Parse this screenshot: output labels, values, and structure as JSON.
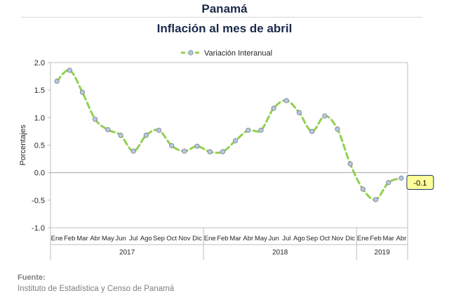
{
  "header": {
    "country": "Panamá",
    "title": "Inflación al mes de abril"
  },
  "source": {
    "label": "Fuente:",
    "text": "Instituto de Estadística y Censo de Panamá"
  },
  "colors": {
    "line": "#92d050",
    "marker_fill": "#b4c7e7",
    "marker_stroke": "#7f7f7f",
    "callout_fill": "#ffff99",
    "callout_border": "#1f3864"
  },
  "chart_data": {
    "type": "line",
    "ylabel": "Porcentajes",
    "ylim": [
      -1.0,
      2.0
    ],
    "yticks": [
      "2.0",
      "1.5",
      "1.0",
      "0.5",
      "0.0",
      "-0.5",
      "-1.0"
    ],
    "legend": "top-center",
    "months": [
      "Ene",
      "Feb",
      "Mar",
      "Abr",
      "May",
      "Jun",
      "Jul",
      "Ago",
      "Sep",
      "Oct",
      "Nov",
      "Dic",
      "Ene",
      "Feb",
      "Mar",
      "Abr",
      "May",
      "Jun",
      "Jul",
      "Ago",
      "Sep",
      "Oct",
      "Nov",
      "Dic",
      "Ene",
      "Feb",
      "Mar",
      "Abr"
    ],
    "years": [
      {
        "label": "2017",
        "months": 12
      },
      {
        "label": "2018",
        "months": 12
      },
      {
        "label": "2019",
        "months": 4
      }
    ],
    "series": [
      {
        "name": "Variación Interanual",
        "values": [
          1.66,
          1.86,
          1.46,
          0.97,
          0.78,
          0.68,
          0.39,
          0.68,
          0.77,
          0.49,
          0.39,
          0.48,
          0.38,
          0.38,
          0.58,
          0.77,
          0.77,
          1.17,
          1.31,
          1.09,
          0.75,
          1.03,
          0.79,
          0.16,
          -0.3,
          -0.49,
          -0.18,
          -0.1
        ]
      }
    ],
    "annotation": {
      "label": "-0.1",
      "point_index": 27
    }
  }
}
